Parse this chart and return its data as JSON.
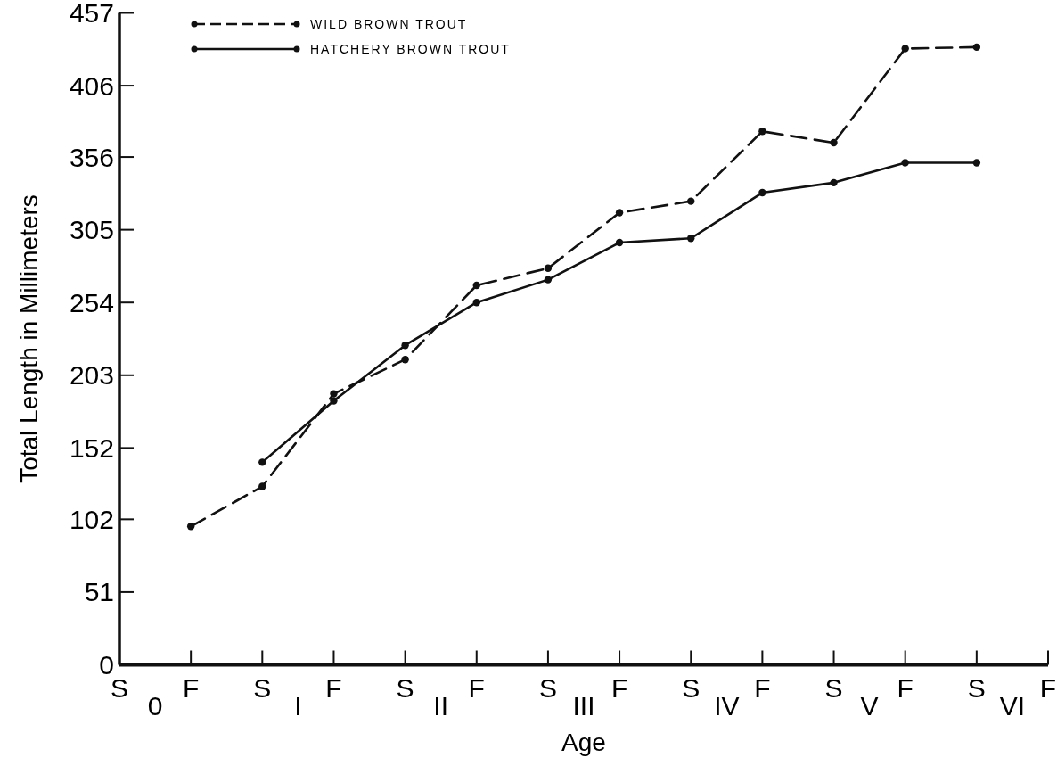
{
  "chart_data": {
    "type": "line",
    "xlabel": "Age",
    "ylabel": "Total Length in Millimeters",
    "categories": [
      "S",
      "F",
      "S",
      "F",
      "S",
      "F",
      "S",
      "F",
      "S",
      "F",
      "S",
      "F",
      "S",
      "F"
    ],
    "annotations": [
      "0",
      "I",
      "II",
      "III",
      "IV",
      "V",
      "VI"
    ],
    "ylim": [
      0,
      457
    ],
    "yticks": [
      0,
      51,
      102,
      152,
      203,
      254,
      305,
      356,
      406,
      457
    ],
    "legend": "top left",
    "marker": "circle",
    "grid": false,
    "series": [
      {
        "name": "WILD BROWN TROUT",
        "color": "#111111",
        "line_style": "dashed",
        "values": [
          null,
          97,
          125,
          190,
          214,
          266,
          278,
          317,
          325,
          374,
          366,
          432,
          433,
          null
        ]
      },
      {
        "name": "HATCHERY BROWN TROUT",
        "color": "#111111",
        "line_style": "solid",
        "values": [
          null,
          null,
          142,
          185,
          224,
          254,
          270,
          296,
          299,
          331,
          338,
          352,
          352,
          null
        ]
      }
    ]
  }
}
